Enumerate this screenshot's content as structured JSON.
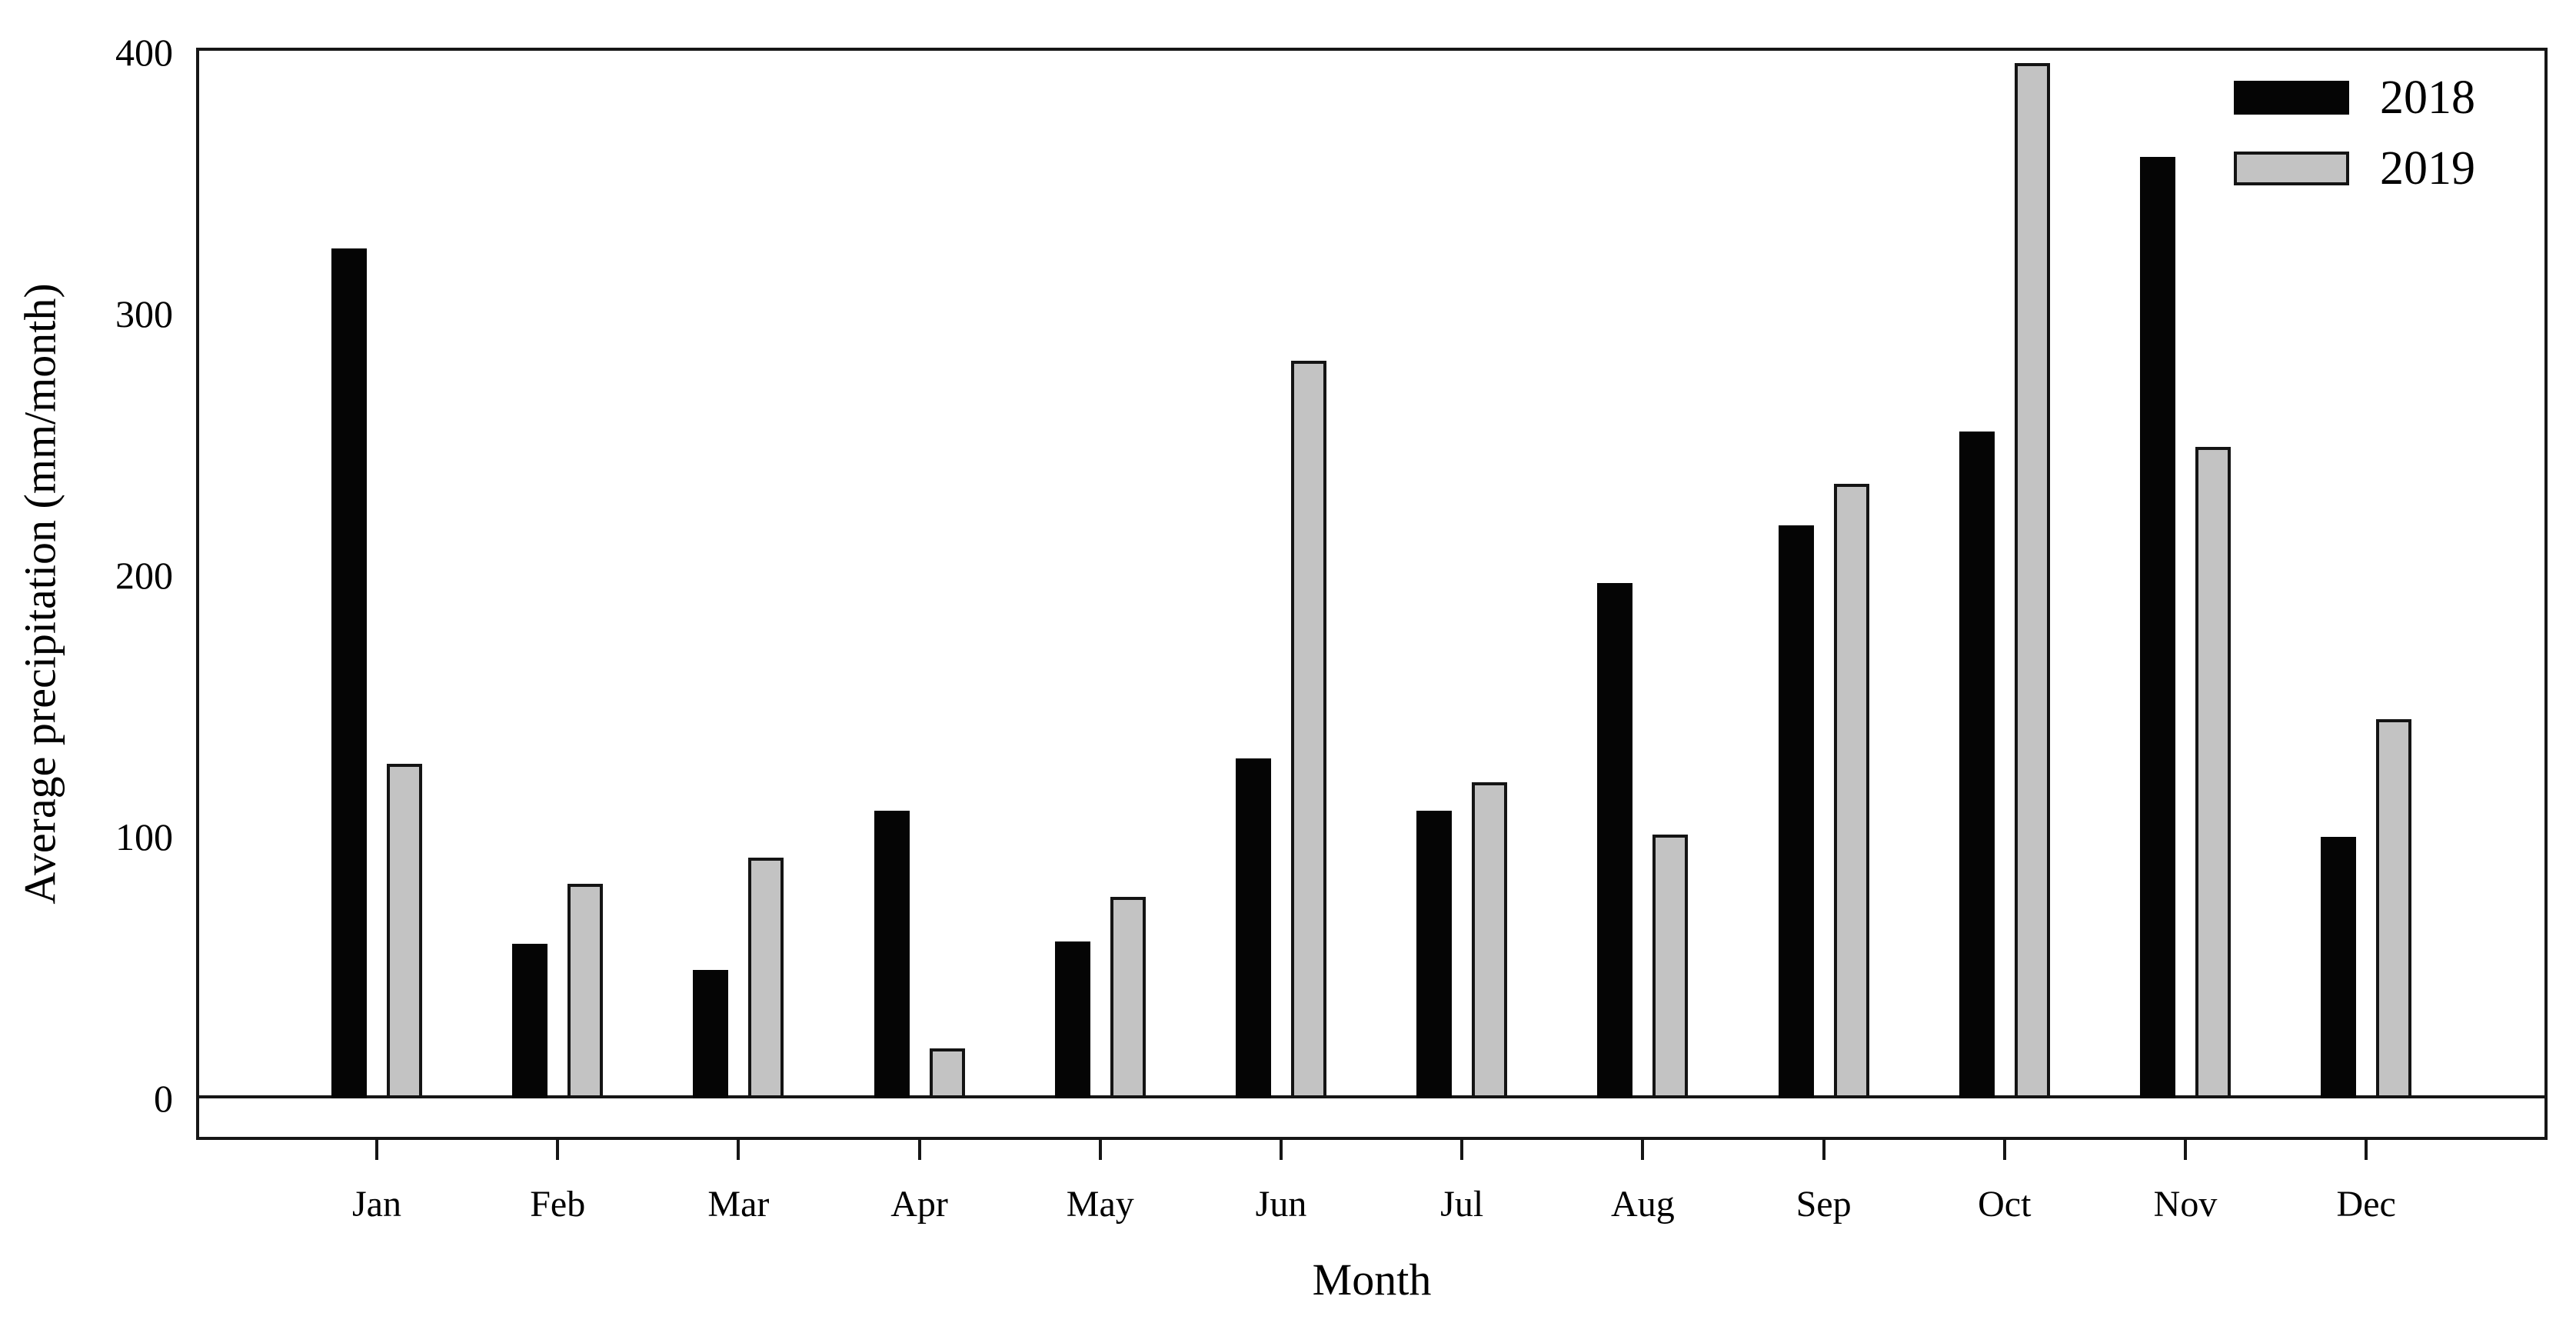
{
  "chart_data": {
    "type": "bar",
    "title": "",
    "xlabel": "Month",
    "ylabel": "Average precipitation (mm/month)",
    "categories": [
      "Jan",
      "Feb",
      "Mar",
      "Apr",
      "May",
      "Jun",
      "Jul",
      "Aug",
      "Sep",
      "Oct",
      "Nov",
      "Dec"
    ],
    "series": [
      {
        "name": "2018",
        "color": "#050505",
        "values": [
          325,
          59,
          49,
          110,
          60,
          130,
          110,
          197,
          219,
          255,
          360,
          100
        ]
      },
      {
        "name": "2019",
        "color": "#c3c3c3",
        "values": [
          128,
          82,
          92,
          19,
          77,
          282,
          121,
          101,
          235,
          396,
          249,
          145
        ]
      }
    ],
    "y_ticks": [
      0,
      100,
      200,
      300,
      400
    ],
    "ylim": [
      0,
      400
    ],
    "grid": false,
    "legend_position": "top-right-inside"
  }
}
